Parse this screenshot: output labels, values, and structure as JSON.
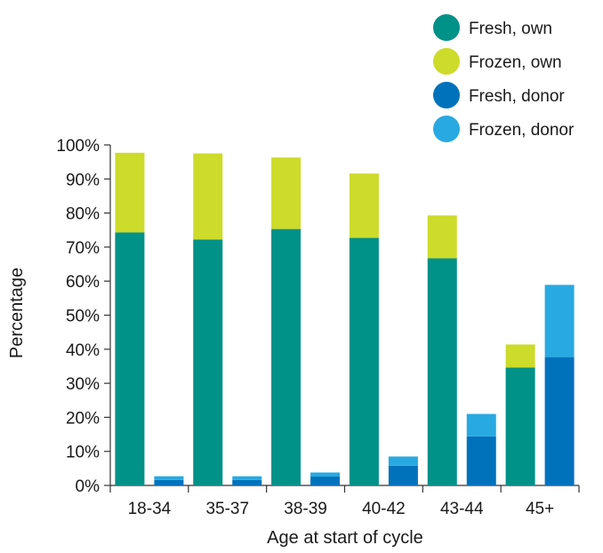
{
  "chart_data": {
    "type": "bar",
    "stacked": true,
    "layout": "two stacked bars per age group: own eggs (left) and donor eggs (right)",
    "title": "",
    "xlabel": "Age at start of cycle",
    "ylabel": "Percentage",
    "ylim": [
      0,
      100
    ],
    "y_ticks": [
      "0%",
      "10%",
      "20%",
      "30%",
      "40%",
      "50%",
      "60%",
      "70%",
      "80%",
      "90%",
      "100%"
    ],
    "categories": [
      "18-34",
      "35-37",
      "38-39",
      "40-42",
      "43-44",
      "45+"
    ],
    "grid": false,
    "legend_position": "top-right",
    "series": [
      {
        "name": "Fresh, own",
        "color": "#009188",
        "stack": "own",
        "values": [
          74.3,
          72.2,
          75.3,
          72.7,
          66.7,
          34.6
        ]
      },
      {
        "name": "Frozen, own",
        "color": "#cddb2a",
        "stack": "own",
        "values": [
          23.4,
          25.3,
          21.0,
          18.9,
          12.6,
          6.8
        ]
      },
      {
        "name": "Fresh, donor",
        "color": "#0072bc",
        "stack": "donor",
        "values": [
          1.6,
          1.6,
          2.6,
          5.8,
          14.4,
          37.7
        ]
      },
      {
        "name": "Frozen, donor",
        "color": "#29a9e1",
        "stack": "donor",
        "values": [
          1.1,
          1.1,
          1.2,
          2.7,
          6.6,
          21.2
        ]
      }
    ]
  }
}
